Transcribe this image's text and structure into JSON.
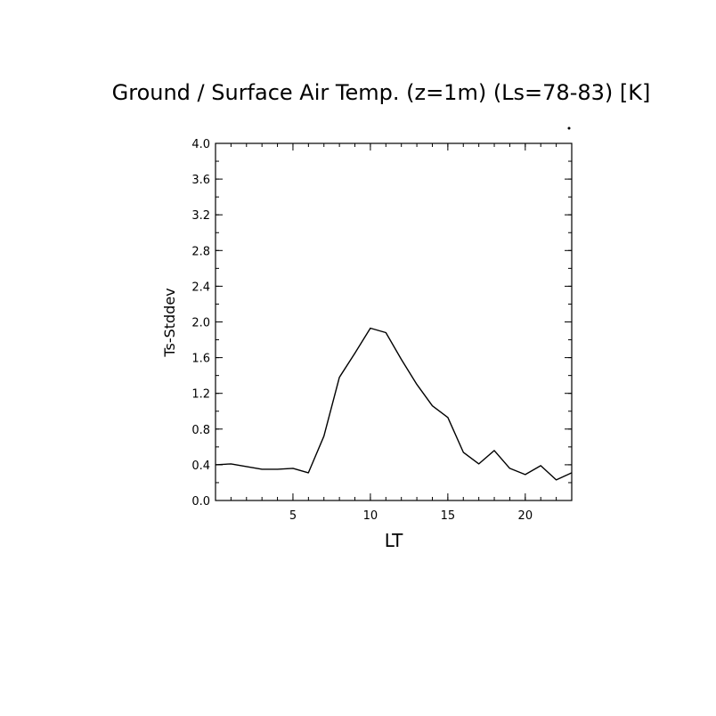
{
  "chart_data": {
    "type": "line",
    "title": "Ground / Surface Air Temp. (z=1m) (Ls=78-83) [K]",
    "xlabel": "LT",
    "ylabel": "Ts-Stddev",
    "xlim": [
      0,
      23
    ],
    "ylim": [
      0.0,
      4.0
    ],
    "x_ticks": [
      5,
      10,
      15,
      20
    ],
    "x_tick_labels": [
      "5",
      "10",
      "15",
      "20"
    ],
    "y_ticks": [
      0.0,
      0.4,
      0.8,
      1.2,
      1.6,
      2.0,
      2.4,
      2.8,
      3.2,
      3.6,
      4.0
    ],
    "y_tick_labels": [
      "0.0",
      "0.4",
      "0.8",
      "1.2",
      "1.6",
      "2.0",
      "2.4",
      "2.8",
      "3.2",
      "3.6",
      "4.0"
    ],
    "grid": false,
    "series": [
      {
        "color": "#000000",
        "x": [
          0.0,
          1.0,
          2.0,
          3.0,
          4.0,
          5.0,
          6.0,
          7.0,
          8.0,
          9.0,
          10.0,
          11.0,
          12.0,
          13.0,
          14.0,
          15.0,
          16.0,
          17.0,
          18.0,
          19.0,
          20.0,
          21.0,
          22.0,
          23.0
        ],
        "y": [
          0.4,
          0.41,
          0.38,
          0.35,
          0.35,
          0.36,
          0.31,
          0.72,
          1.38,
          1.65,
          1.93,
          1.88,
          1.58,
          1.3,
          1.06,
          0.93,
          0.54,
          0.41,
          0.56,
          0.36,
          0.29,
          0.39,
          0.23,
          0.31
        ]
      }
    ]
  }
}
